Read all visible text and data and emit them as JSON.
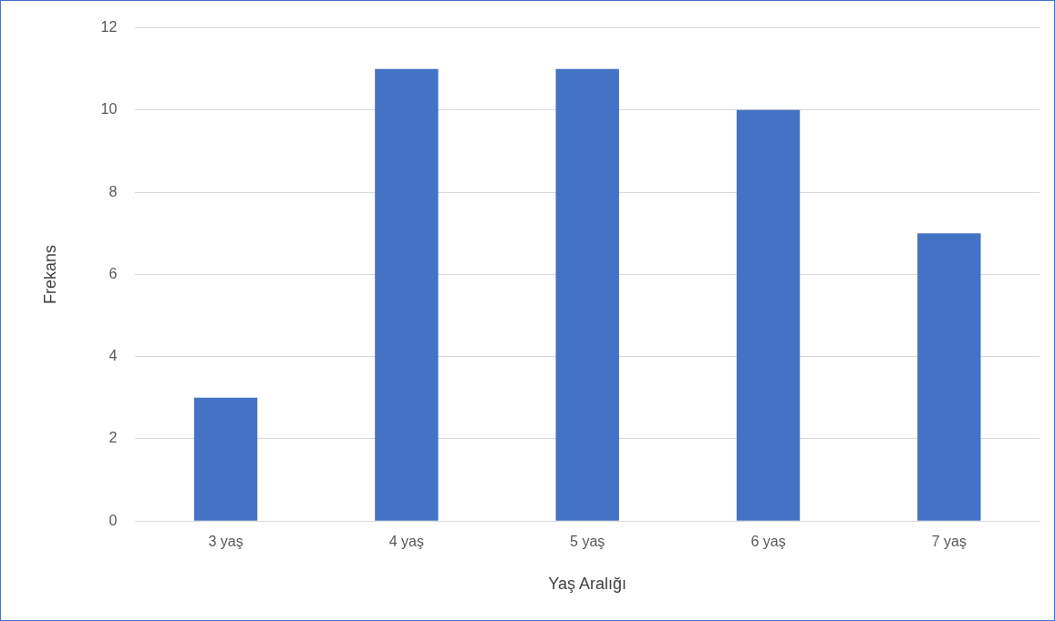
{
  "chart_data": {
    "type": "bar",
    "xlabel": "Yaş Aralığı",
    "ylabel": "Frekans",
    "categories": [
      "3 yaş",
      "4 yaş",
      "5 yaş",
      "6 yaş",
      "7 yaş"
    ],
    "values": [
      3,
      11,
      11,
      10,
      7
    ],
    "color": "#4472c4",
    "ylim": [
      0,
      12
    ],
    "yticks": [
      0,
      2,
      4,
      6,
      8,
      10,
      12
    ],
    "grid": "y"
  }
}
